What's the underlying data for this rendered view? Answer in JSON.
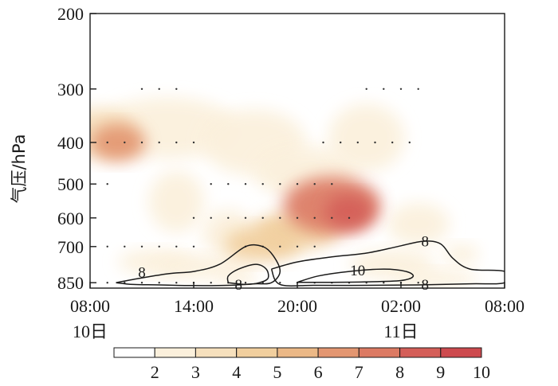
{
  "chart_data": {
    "type": "heatmap",
    "ylabel": "气压/hPa",
    "y_scale": "log-pressure",
    "ylim": [
      875,
      200
    ],
    "yticks": [
      "200",
      "300",
      "400",
      "500",
      "600",
      "700",
      "850"
    ],
    "ytick_values": [
      200,
      300,
      400,
      500,
      600,
      700,
      850
    ],
    "x_tick_labels": [
      "08:00",
      "14:00",
      "20:00",
      "02:00",
      "08:00"
    ],
    "x_tick_hours": [
      0,
      6,
      12,
      18,
      24
    ],
    "xlim": [
      0,
      24
    ],
    "date_labels": [
      {
        "text": "10日",
        "hour": 0
      },
      {
        "text": "11日",
        "hour": 18
      }
    ],
    "colorbar": {
      "tick_labels": [
        "2",
        "3",
        "4",
        "5",
        "6",
        "7",
        "8",
        "9",
        "10"
      ],
      "levels": [
        2,
        3,
        4,
        5,
        6,
        7,
        8,
        9,
        10
      ],
      "colors": [
        "#ffffff",
        "#fbf0dc",
        "#f6e0bd",
        "#f1cf9e",
        "#ebb886",
        "#e39671",
        "#dc7a63",
        "#d45e58",
        "#cd4a4e"
      ]
    },
    "shading_blobs": [
      {
        "hour": 1.6,
        "p": 400,
        "w": 1.6,
        "h": 80,
        "val": 7.8
      },
      {
        "hour": 0.5,
        "p": 380,
        "w": 2.2,
        "h": 100,
        "val": 4.3
      },
      {
        "hour": 4.5,
        "p": 370,
        "w": 4.0,
        "h": 120,
        "val": 3.0
      },
      {
        "hour": 9.5,
        "p": 400,
        "w": 3.0,
        "h": 140,
        "val": 3.0
      },
      {
        "hour": 5.0,
        "p": 550,
        "w": 1.6,
        "h": 180,
        "val": 3.5
      },
      {
        "hour": 3.8,
        "p": 760,
        "w": 2.2,
        "h": 100,
        "val": 3.0
      },
      {
        "hour": 8.0,
        "p": 650,
        "w": 1.5,
        "h": 160,
        "val": 3.2
      },
      {
        "hour": 8.5,
        "p": 830,
        "w": 1.2,
        "h": 60,
        "val": 3.5
      },
      {
        "hour": 6.5,
        "p": 780,
        "w": 3.0,
        "h": 100,
        "val": 3.0
      },
      {
        "hour": 10.0,
        "p": 690,
        "w": 2.2,
        "h": 130,
        "val": 5.8
      },
      {
        "hour": 12.0,
        "p": 640,
        "w": 2.5,
        "h": 130,
        "val": 5.8
      },
      {
        "hour": 14.0,
        "p": 560,
        "w": 2.8,
        "h": 170,
        "val": 8.4
      },
      {
        "hour": 15.0,
        "p": 580,
        "w": 1.4,
        "h": 110,
        "val": 9.4
      },
      {
        "hour": 12.5,
        "p": 470,
        "w": 3.0,
        "h": 130,
        "val": 3.0
      },
      {
        "hour": 16.0,
        "p": 390,
        "w": 2.2,
        "h": 140,
        "val": 3.8
      },
      {
        "hour": 17.0,
        "p": 320,
        "w": 1.4,
        "h": 60,
        "val": 2.6
      },
      {
        "hour": 17.5,
        "p": 770,
        "w": 2.5,
        "h": 120,
        "val": 3.6
      },
      {
        "hour": 20.0,
        "p": 830,
        "w": 2.5,
        "h": 80,
        "val": 3.8
      },
      {
        "hour": 19.0,
        "p": 620,
        "w": 1.8,
        "h": 140,
        "val": 3.0
      },
      {
        "hour": 21.5,
        "p": 730,
        "w": 1.0,
        "h": 80,
        "val": 3.0
      }
    ],
    "contours": [
      {
        "level": "8",
        "path_hp": [
          [
            1.5,
            850
          ],
          [
            2.5,
            835
          ],
          [
            4.5,
            810
          ],
          [
            6.0,
            800
          ],
          [
            7.5,
            770
          ],
          [
            9.0,
            700
          ],
          [
            10.0,
            700
          ],
          [
            10.6,
            735
          ],
          [
            11.0,
            800
          ],
          [
            10.5,
            850
          ],
          [
            9.5,
            855
          ],
          [
            8.0,
            862
          ],
          [
            6.0,
            863
          ],
          [
            4.0,
            860
          ],
          [
            2.5,
            858
          ],
          [
            1.5,
            850
          ]
        ],
        "label_at": [
          3.0,
          805
        ]
      },
      {
        "level": "8",
        "path_hp": [
          [
            8.0,
            850
          ],
          [
            8.0,
            820
          ],
          [
            8.6,
            790
          ],
          [
            9.6,
            770
          ],
          [
            10.2,
            790
          ],
          [
            10.3,
            830
          ],
          [
            9.8,
            850
          ],
          [
            9.0,
            858
          ],
          [
            8.0,
            850
          ]
        ],
        "label_at": [
          8.6,
          860
        ]
      },
      {
        "level": "8",
        "path_hp": [
          [
            10.5,
            790
          ],
          [
            12.0,
            760
          ],
          [
            14.0,
            740
          ],
          [
            16.0,
            725
          ],
          [
            17.8,
            700
          ],
          [
            19.3,
            680
          ],
          [
            20.3,
            690
          ],
          [
            21.0,
            745
          ],
          [
            22.0,
            790
          ],
          [
            24.0,
            800
          ],
          [
            24.0,
            850
          ],
          [
            22.0,
            855
          ],
          [
            19.0,
            860
          ],
          [
            16.0,
            862
          ],
          [
            13.0,
            862
          ],
          [
            11.0,
            858
          ],
          [
            10.5,
            790
          ]
        ],
        "label_at": [
          19.4,
          682
        ]
      },
      {
        "level": "10",
        "path_hp": [
          [
            12.0,
            848
          ],
          [
            13.2,
            820
          ],
          [
            15.0,
            800
          ],
          [
            17.0,
            790
          ],
          [
            18.3,
            800
          ],
          [
            18.7,
            822
          ],
          [
            18.0,
            840
          ],
          [
            16.0,
            846
          ],
          [
            14.0,
            848
          ],
          [
            12.0,
            848
          ]
        ],
        "label_at": [
          15.5,
          796
        ]
      }
    ],
    "contour_extra_labels": [
      {
        "text": "8",
        "hour": 19.4,
        "p": 860
      }
    ],
    "stipple_levels": [
      300,
      400,
      500,
      600,
      700,
      850
    ]
  }
}
